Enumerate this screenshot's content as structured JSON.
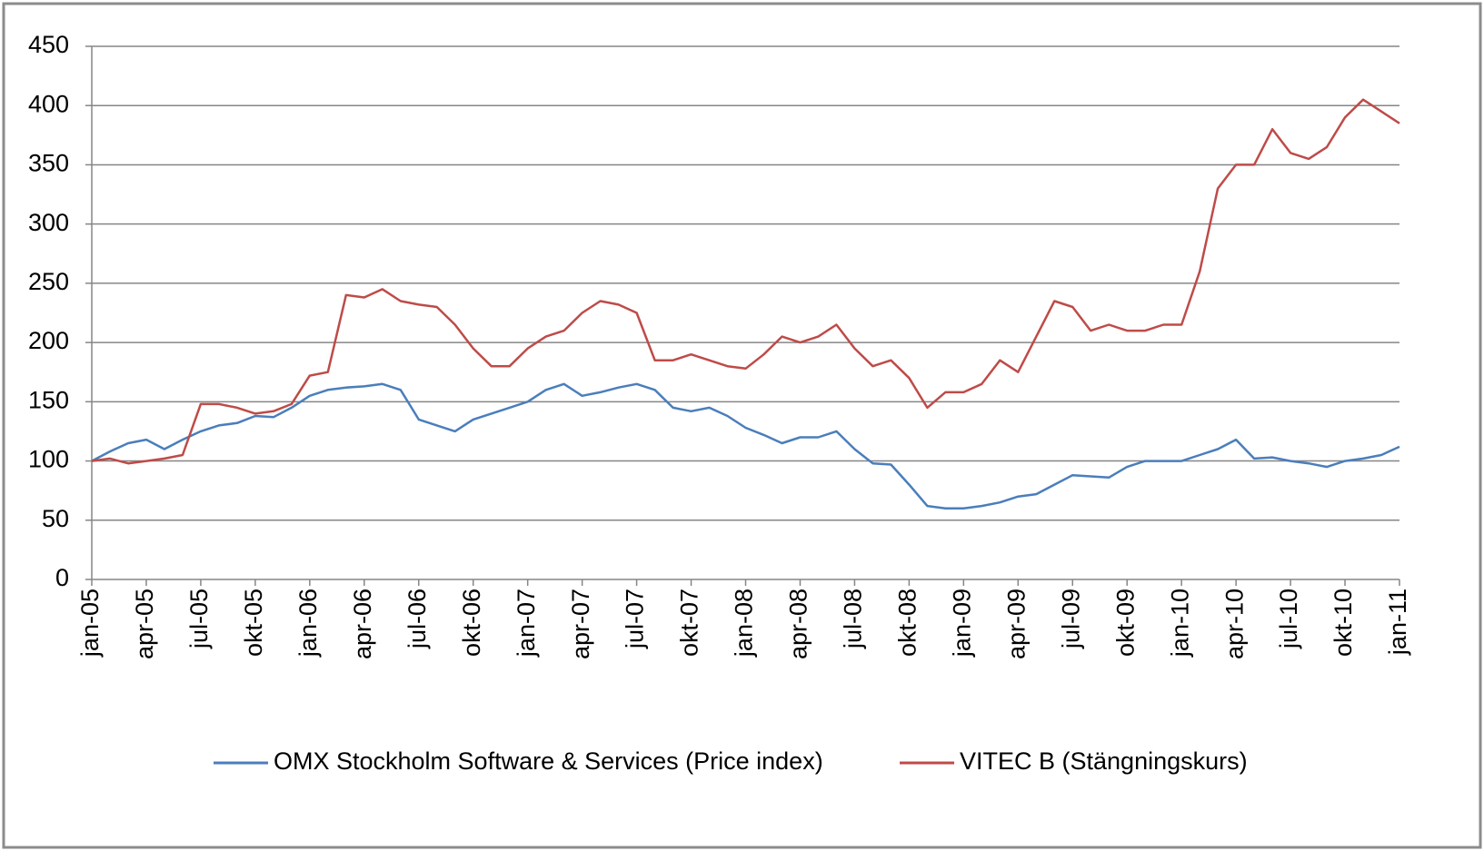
{
  "chart_data": {
    "type": "line",
    "categories": [
      "jan-05",
      null,
      null,
      "apr-05",
      null,
      null,
      "jul-05",
      null,
      null,
      "okt-05",
      null,
      null,
      "jan-06",
      null,
      null,
      "apr-06",
      null,
      null,
      "jul-06",
      null,
      null,
      "okt-06",
      null,
      null,
      "jan-07",
      null,
      null,
      "apr-07",
      null,
      null,
      "jul-07",
      null,
      null,
      "okt-07",
      null,
      null,
      "jan-08",
      null,
      null,
      "apr-08",
      null,
      null,
      "jul-08",
      null,
      null,
      "okt-08",
      null,
      null,
      "jan-09",
      null,
      null,
      "apr-09",
      null,
      null,
      "jul-09",
      null,
      null,
      "okt-09",
      null,
      null,
      "jan-10",
      null,
      null,
      "apr-10",
      null,
      null,
      "jul-10",
      null,
      null,
      "okt-10",
      null,
      null,
      "jan-11"
    ],
    "series": [
      {
        "name": "OMX Stockholm Software & Services (Price index)",
        "color": "#4a7ebb",
        "values": [
          100,
          108,
          115,
          118,
          110,
          118,
          125,
          130,
          132,
          138,
          137,
          145,
          155,
          160,
          162,
          163,
          165,
          160,
          135,
          130,
          125,
          135,
          140,
          145,
          150,
          160,
          165,
          155,
          158,
          162,
          165,
          160,
          145,
          142,
          145,
          138,
          128,
          122,
          115,
          120,
          120,
          125,
          110,
          98,
          97,
          80,
          62,
          60,
          60,
          62,
          65,
          70,
          72,
          80,
          88,
          87,
          86,
          95,
          100,
          100,
          100,
          105,
          110,
          118,
          102,
          103,
          100,
          98,
          95,
          100,
          102,
          105,
          112
        ]
      },
      {
        "name": "VITEC B (Stängningskurs)",
        "color": "#be4b48",
        "values": [
          100,
          102,
          98,
          100,
          102,
          105,
          148,
          148,
          145,
          140,
          142,
          148,
          172,
          175,
          240,
          238,
          245,
          235,
          232,
          230,
          215,
          195,
          180,
          180,
          195,
          205,
          210,
          225,
          235,
          232,
          225,
          185,
          185,
          190,
          185,
          180,
          178,
          190,
          205,
          200,
          205,
          215,
          195,
          180,
          185,
          170,
          145,
          158,
          158,
          165,
          185,
          175,
          205,
          235,
          230,
          210,
          215,
          210,
          210,
          215,
          215,
          260,
          330,
          350,
          350,
          380,
          360,
          355,
          365,
          390,
          405,
          395,
          385
        ]
      }
    ],
    "ylim": [
      0,
      450
    ],
    "yticks": [
      0,
      50,
      100,
      150,
      200,
      250,
      300,
      350,
      400,
      450
    ],
    "grid": true
  }
}
